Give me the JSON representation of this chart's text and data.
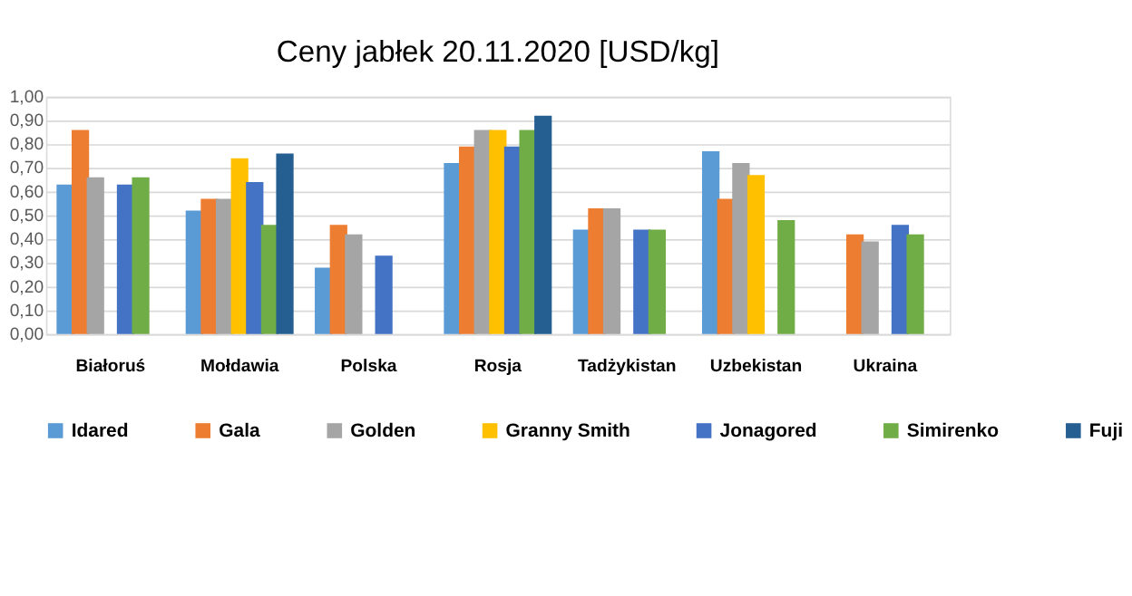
{
  "chart_data": {
    "type": "bar",
    "title": "Ceny jabłek 20.11.2020 [USD/kg]",
    "categories": [
      "Białoruś",
      "Mołdawia",
      "Polska",
      "Rosja",
      "Tadżykistan",
      "Uzbekistan",
      "Ukraina"
    ],
    "series": [
      {
        "name": "Idared",
        "color": "#5b9bd5",
        "values": [
          0.63,
          0.52,
          0.28,
          0.72,
          0.44,
          0.77,
          null
        ]
      },
      {
        "name": "Gala",
        "color": "#ed7d31",
        "values": [
          0.86,
          0.57,
          0.46,
          0.79,
          0.53,
          0.57,
          0.42
        ]
      },
      {
        "name": "Golden",
        "color": "#a5a5a5",
        "values": [
          0.66,
          0.57,
          0.42,
          0.86,
          0.53,
          0.72,
          0.39
        ]
      },
      {
        "name": "Granny Smith",
        "color": "#ffc000",
        "values": [
          null,
          0.74,
          null,
          0.86,
          null,
          0.67,
          null
        ]
      },
      {
        "name": "Jonagored",
        "color": "#4472c4",
        "values": [
          0.63,
          0.64,
          0.33,
          0.79,
          0.44,
          null,
          0.46
        ]
      },
      {
        "name": "Simirenko",
        "color": "#70ad47",
        "values": [
          0.66,
          0.46,
          null,
          0.86,
          0.44,
          0.48,
          0.42
        ]
      },
      {
        "name": "Fuji",
        "color": "#255e91",
        "values": [
          null,
          0.76,
          null,
          0.92,
          null,
          null,
          null
        ]
      }
    ],
    "ylim": [
      0,
      1
    ],
    "yticks": [
      {
        "value": 0,
        "label": "0,00"
      },
      {
        "value": 0.1,
        "label": "0,10"
      },
      {
        "value": 0.2,
        "label": "0,20"
      },
      {
        "value": 0.3,
        "label": "0,30"
      },
      {
        "value": 0.4,
        "label": "0,40"
      },
      {
        "value": 0.5,
        "label": "0,50"
      },
      {
        "value": 0.6,
        "label": "0,60"
      },
      {
        "value": 0.7,
        "label": "0,70"
      },
      {
        "value": 0.8,
        "label": "0,80"
      },
      {
        "value": 0.9,
        "label": "0,90"
      },
      {
        "value": 1,
        "label": "1,00"
      }
    ],
    "grid": "y",
    "legend": "bottom"
  }
}
